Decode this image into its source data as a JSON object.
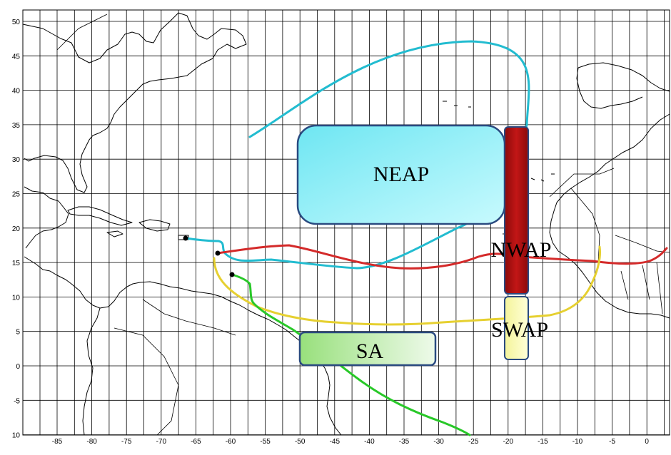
{
  "map": {
    "lon_ticks": [
      "-85",
      "-80",
      "-75",
      "-70",
      "-65",
      "-60",
      "-55",
      "-50",
      "-45",
      "-40",
      "-35",
      "-30",
      "-25",
      "-20",
      "-15",
      "-10",
      "-5",
      "0"
    ],
    "lat_ticks": [
      "50",
      "45",
      "40",
      "35",
      "30",
      "25",
      "20",
      "15",
      "10",
      "5",
      "0",
      "-5",
      "10"
    ],
    "regions": {
      "neap": "NEAP",
      "nwap": "NWAP",
      "swap": "SWAP",
      "sa": "SA"
    },
    "colors": {
      "neap_route": "#22bcd0",
      "nwap_route": "#d42a2a",
      "swap_route": "#e6d030",
      "sa_route": "#28c828",
      "neap_box": "#8ef0f8",
      "nwap_box": "#a50f0f",
      "swap_box": "#fbfbb8",
      "sa_box": "#aee89a",
      "box_border": "#2a4a80"
    }
  }
}
